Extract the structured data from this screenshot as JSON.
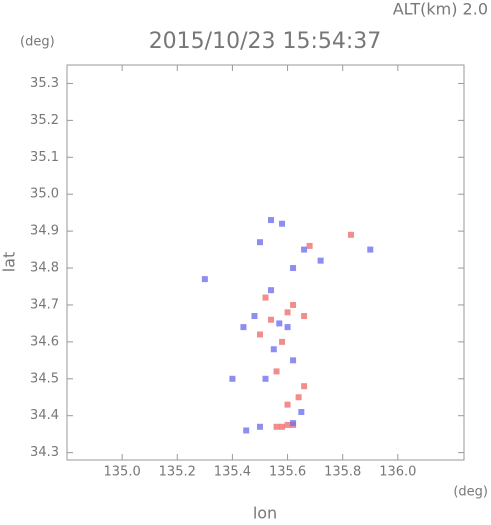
{
  "chart_data": {
    "type": "scatter",
    "title": "2015/10/23 15:54:37",
    "annotation": "ALT(km)  2.0",
    "y_unit": "(deg)",
    "x_unit": "(deg)",
    "xlabel": "lon",
    "ylabel": "lat",
    "xlim": [
      134.8,
      136.24
    ],
    "ylim": [
      34.28,
      35.35
    ],
    "xticks": [
      {
        "value": 135,
        "label": "135.0"
      },
      135.2,
      135.4,
      135.6,
      135.8,
      {
        "value": 136,
        "label": "136.0"
      }
    ],
    "yticks": [
      34.3,
      34.4,
      34.5,
      34.6,
      34.7,
      34.8,
      34.9,
      {
        "value": 35,
        "label": "35.0"
      },
      35.1,
      35.2,
      35.3
    ],
    "series": [
      {
        "color": "#f07070",
        "x": [
          135.56,
          135.58,
          135.6,
          135.62,
          135.52,
          135.6,
          135.66,
          135.5,
          135.58,
          135.64,
          135.6,
          135.66,
          135.83,
          135.68,
          135.54,
          135.62,
          135.56
        ],
        "values": [
          34.37,
          34.37,
          34.375,
          34.375,
          34.72,
          34.68,
          34.67,
          34.62,
          34.6,
          34.45,
          34.43,
          34.48,
          34.89,
          34.86,
          34.66,
          34.7,
          34.52
        ]
      },
      {
        "color": "#7070f0",
        "x": [
          135.54,
          135.58,
          135.5,
          135.62,
          135.66,
          135.72,
          135.9,
          135.3,
          135.48,
          135.6,
          135.55,
          135.62,
          135.4,
          135.52,
          135.62,
          135.45,
          135.5,
          135.57,
          135.54,
          135.44,
          135.65
        ],
        "values": [
          34.93,
          34.92,
          34.87,
          34.8,
          34.85,
          34.82,
          34.85,
          34.77,
          34.67,
          34.64,
          34.58,
          34.55,
          34.5,
          34.5,
          34.38,
          34.36,
          34.37,
          34.65,
          34.74,
          34.64,
          34.41
        ]
      }
    ]
  }
}
